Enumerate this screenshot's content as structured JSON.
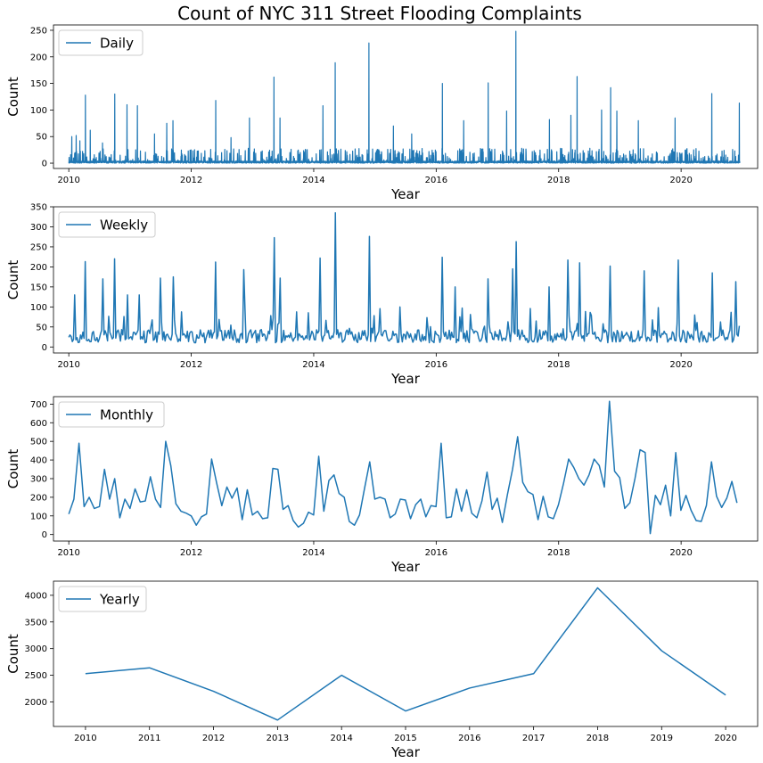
{
  "chart_data": {
    "title": "Count of NYC 311 Street Flooding Complaints",
    "color": "#1f77b4",
    "panels": [
      {
        "type": "line",
        "name": "daily",
        "legend": "Daily",
        "legend_position": "upper-left",
        "xlabel": "Year",
        "ylabel": "Count",
        "xlim": [
          2009.75,
          2021.25
        ],
        "ylim": [
          -10,
          260
        ],
        "yticks": [
          0,
          50,
          100,
          150,
          200,
          250
        ],
        "xticks": [
          "2010",
          "2012",
          "2014",
          "2016",
          "2018",
          "2020"
        ],
        "xtick_values": [
          2010,
          2012,
          2014,
          2016,
          2018,
          2020
        ],
        "baseline": 3,
        "spikes": [
          [
            2010.05,
            50
          ],
          [
            2010.12,
            52
          ],
          [
            2010.18,
            42
          ],
          [
            2010.27,
            128
          ],
          [
            2010.35,
            62
          ],
          [
            2010.55,
            38
          ],
          [
            2010.75,
            130
          ],
          [
            2010.95,
            110
          ],
          [
            2011.12,
            108
          ],
          [
            2011.4,
            55
          ],
          [
            2011.6,
            75
          ],
          [
            2011.7,
            80
          ],
          [
            2012.4,
            118
          ],
          [
            2012.65,
            48
          ],
          [
            2012.95,
            85
          ],
          [
            2013.35,
            162
          ],
          [
            2013.45,
            85
          ],
          [
            2014.15,
            108
          ],
          [
            2014.35,
            189
          ],
          [
            2014.9,
            226
          ],
          [
            2015.3,
            70
          ],
          [
            2015.6,
            55
          ],
          [
            2016.1,
            150
          ],
          [
            2016.45,
            80
          ],
          [
            2016.85,
            151
          ],
          [
            2017.15,
            98
          ],
          [
            2017.3,
            248
          ],
          [
            2017.85,
            82
          ],
          [
            2018.2,
            90
          ],
          [
            2018.3,
            163
          ],
          [
            2018.7,
            100
          ],
          [
            2018.85,
            142
          ],
          [
            2018.95,
            98
          ],
          [
            2019.3,
            80
          ],
          [
            2019.9,
            85
          ],
          [
            2020.5,
            131
          ],
          [
            2020.95,
            113
          ]
        ]
      },
      {
        "type": "line",
        "name": "weekly",
        "legend": "Weekly",
        "legend_position": "upper-left",
        "xlabel": "Year",
        "ylabel": "Count",
        "xlim": [
          2009.75,
          2021.25
        ],
        "ylim": [
          -15,
          350
        ],
        "yticks": [
          0,
          50,
          100,
          150,
          200,
          250,
          300,
          350
        ],
        "xticks": [
          "2010",
          "2012",
          "2014",
          "2016",
          "2018",
          "2020"
        ],
        "xtick_values": [
          2010,
          2012,
          2014,
          2016,
          2018,
          2020
        ],
        "baseline": 30,
        "spikes": [
          [
            2010.1,
            130
          ],
          [
            2010.27,
            213
          ],
          [
            2010.55,
            170
          ],
          [
            2010.75,
            220
          ],
          [
            2010.95,
            130
          ],
          [
            2011.15,
            130
          ],
          [
            2011.5,
            172
          ],
          [
            2011.7,
            175
          ],
          [
            2012.4,
            212
          ],
          [
            2012.85,
            193
          ],
          [
            2013.35,
            273
          ],
          [
            2013.45,
            172
          ],
          [
            2014.1,
            222
          ],
          [
            2014.35,
            335
          ],
          [
            2014.9,
            276
          ],
          [
            2015.4,
            100
          ],
          [
            2016.1,
            224
          ],
          [
            2016.3,
            150
          ],
          [
            2016.85,
            170
          ],
          [
            2017.25,
            195
          ],
          [
            2017.3,
            263
          ],
          [
            2017.85,
            150
          ],
          [
            2018.15,
            217
          ],
          [
            2018.35,
            210
          ],
          [
            2018.85,
            202
          ],
          [
            2019.4,
            190
          ],
          [
            2019.95,
            217
          ],
          [
            2020.5,
            185
          ],
          [
            2020.9,
            163
          ]
        ]
      },
      {
        "type": "line",
        "name": "monthly",
        "legend": "Monthly",
        "legend_position": "upper-left",
        "xlabel": "Year",
        "ylabel": "Count",
        "xlim": [
          2009.75,
          2021.25
        ],
        "ylim": [
          -35,
          740
        ],
        "yticks": [
          0,
          100,
          200,
          300,
          400,
          500,
          600,
          700
        ],
        "xticks": [
          "2010",
          "2012",
          "2014",
          "2016",
          "2018",
          "2020"
        ],
        "xtick_values": [
          2010,
          2012,
          2014,
          2016,
          2018,
          2020
        ],
        "x_start": 2010,
        "x_step": 0.0833,
        "values": [
          110,
          190,
          490,
          150,
          200,
          140,
          150,
          350,
          190,
          300,
          90,
          190,
          140,
          245,
          175,
          180,
          310,
          190,
          145,
          500,
          370,
          165,
          125,
          115,
          100,
          50,
          95,
          110,
          405,
          275,
          155,
          255,
          195,
          250,
          80,
          240,
          105,
          125,
          85,
          90,
          355,
          350,
          135,
          155,
          75,
          40,
          60,
          120,
          105,
          420,
          125,
          290,
          320,
          220,
          200,
          70,
          50,
          105,
          250,
          390,
          190,
          200,
          190,
          90,
          110,
          190,
          185,
          85,
          160,
          190,
          95,
          155,
          150,
          490,
          90,
          95,
          245,
          125,
          240,
          115,
          90,
          180,
          335,
          135,
          195,
          65,
          215,
          350,
          525,
          280,
          230,
          215,
          80,
          205,
          95,
          85,
          160,
          275,
          405,
          360,
          300,
          265,
          320,
          405,
          370,
          255,
          715,
          340,
          305,
          140,
          170,
          300,
          455,
          440,
          5,
          210,
          160,
          265,
          100,
          440,
          130,
          210,
          130,
          75,
          70,
          155,
          390,
          205,
          145,
          195,
          285,
          170
        ]
      },
      {
        "type": "line",
        "name": "yearly",
        "legend": "Yearly",
        "legend_position": "upper-left",
        "xlabel": "Year",
        "ylabel": "Count",
        "xlim": [
          2009.5,
          2020.5
        ],
        "ylim": [
          1540,
          4265
        ],
        "yticks": [
          2000,
          2500,
          3000,
          3500,
          4000
        ],
        "xticks": [
          "2010",
          "2011",
          "2012",
          "2013",
          "2014",
          "2015",
          "2016",
          "2017",
          "2018",
          "2019",
          "2020"
        ],
        "xtick_values": [
          2010,
          2011,
          2012,
          2013,
          2014,
          2015,
          2016,
          2017,
          2018,
          2019,
          2020
        ],
        "x": [
          2010,
          2011,
          2012,
          2013,
          2014,
          2015,
          2016,
          2017,
          2018,
          2019,
          2020
        ],
        "values": [
          2530,
          2640,
          2200,
          1660,
          2500,
          1830,
          2260,
          2530,
          4140,
          2960,
          2130
        ]
      }
    ]
  }
}
